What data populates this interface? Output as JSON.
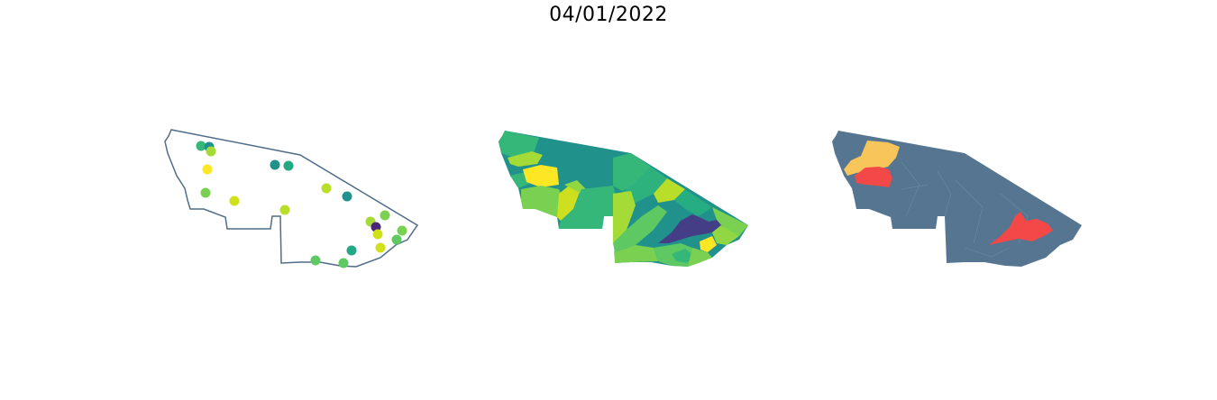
{
  "figure": {
    "title": "04/01/2022"
  },
  "panels": [
    {
      "id": "points",
      "type": "point-map",
      "outline_color": "#4f6d8a",
      "fill": "#ffffff",
      "colormap": "viridis",
      "point_colors": [
        "#21918c",
        "#35b779",
        "#a5db36",
        "#fde725",
        "#d0e11c",
        "#7ad151",
        "#440154",
        "#482777",
        "#3b528b",
        "#22a884",
        "#5ec962",
        "#90d743",
        "#b8de29"
      ]
    },
    {
      "id": "choropleth",
      "type": "choropleth-map",
      "colormap": "viridis",
      "region_colors": [
        "#21918c",
        "#35b779",
        "#7ad151",
        "#a5db36",
        "#fde725",
        "#cddf1f",
        "#433e85",
        "#5ec962",
        "#1f9e89",
        "#90d743",
        "#26ad81",
        "#2db27d"
      ]
    },
    {
      "id": "highlight",
      "type": "highlight-map",
      "base_color": "#567591",
      "highlight_colors": [
        "#f8c55a",
        "#f24848"
      ]
    }
  ]
}
